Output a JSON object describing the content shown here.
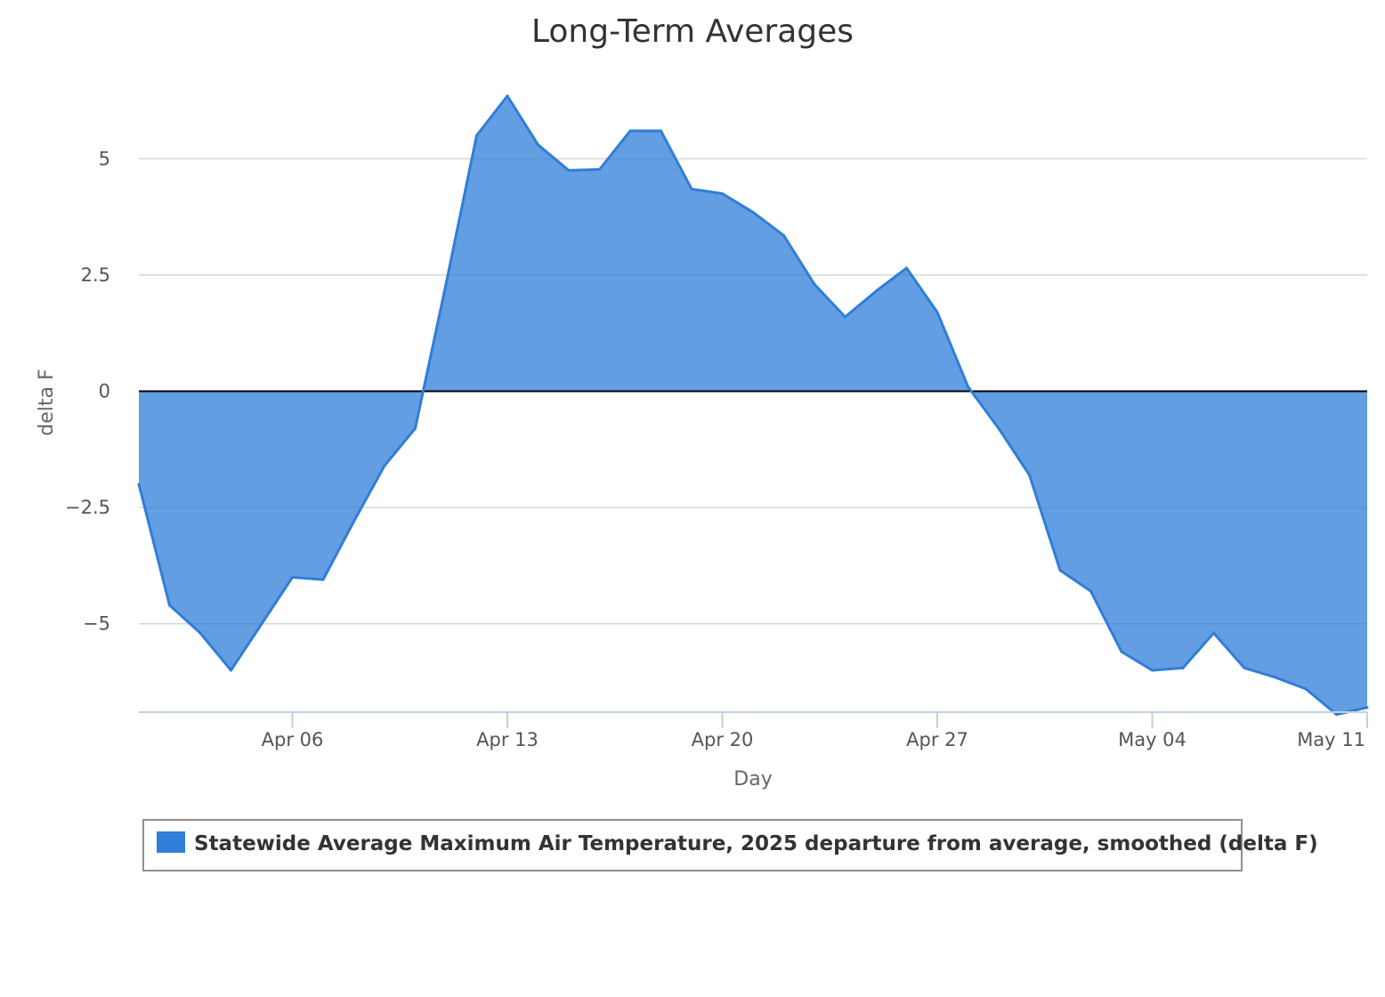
{
  "chart_data": {
    "type": "area",
    "title": "Long-Term Averages",
    "xlabel": "Day",
    "ylabel": "delta F",
    "x_ticks": [
      "Apr 06",
      "Apr 13",
      "Apr 20",
      "Apr 27",
      "May 04",
      "May 11"
    ],
    "y_ticks": [
      "5",
      "2.5",
      "0",
      "−2.5",
      "−5"
    ],
    "y_tick_values": [
      5,
      2.5,
      0,
      -2.5,
      -5
    ],
    "ylim": [
      -6.9,
      6.5
    ],
    "xlim": [
      "2025-04-01",
      "2025-05-11"
    ],
    "grid": true,
    "legend_position": "bottom",
    "series": [
      {
        "name": "Statewide Average Maximum Air Temperature, 2025 departure from average, smoothed (delta F)",
        "color": "#2f7ed8",
        "x": [
          "2025-04-01",
          "2025-04-02",
          "2025-04-03",
          "2025-04-04",
          "2025-04-05",
          "2025-04-06",
          "2025-04-07",
          "2025-04-08",
          "2025-04-09",
          "2025-04-10",
          "2025-04-11",
          "2025-04-12",
          "2025-04-13",
          "2025-04-14",
          "2025-04-15",
          "2025-04-16",
          "2025-04-17",
          "2025-04-18",
          "2025-04-19",
          "2025-04-20",
          "2025-04-21",
          "2025-04-22",
          "2025-04-23",
          "2025-04-24",
          "2025-04-25",
          "2025-04-26",
          "2025-04-27",
          "2025-04-28",
          "2025-04-29",
          "2025-04-30",
          "2025-05-01",
          "2025-05-02",
          "2025-05-03",
          "2025-05-04",
          "2025-05-05",
          "2025-05-06",
          "2025-05-07",
          "2025-05-08",
          "2025-05-09",
          "2025-05-10",
          "2025-05-11"
        ],
        "values": [
          -2.0,
          -4.6,
          -5.2,
          -6.0,
          -5.0,
          -4.0,
          -4.05,
          -2.8,
          -1.6,
          -0.8,
          2.3,
          5.5,
          6.35,
          5.3,
          4.75,
          4.77,
          5.6,
          5.6,
          4.35,
          4.25,
          3.85,
          3.35,
          2.3,
          1.6,
          2.15,
          2.65,
          1.7,
          0.1,
          -0.8,
          -1.8,
          -3.85,
          -4.3,
          -5.6,
          -6.0,
          -5.95,
          -5.2,
          -5.95,
          -6.15,
          -6.4,
          -6.95,
          -6.8
        ]
      }
    ]
  }
}
